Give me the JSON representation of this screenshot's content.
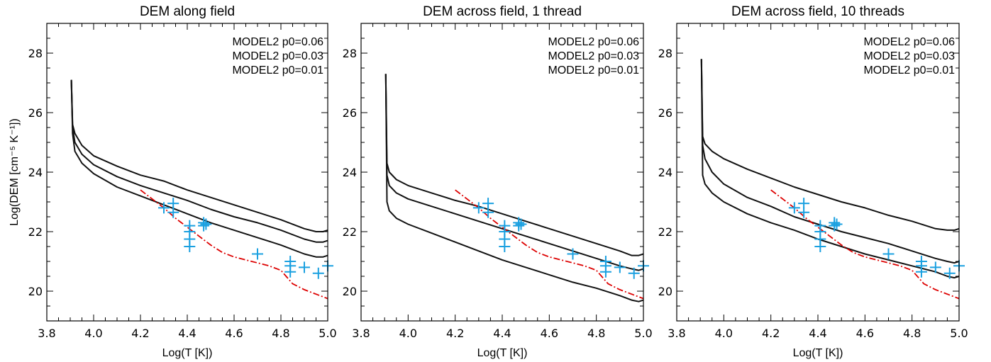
{
  "chart_data": [
    {
      "type": "line",
      "title": "DEM along field",
      "xlabel": "Log(T [K])",
      "ylabel": "Log(DEM [cm⁻⁵ K⁻¹])",
      "xlim": [
        3.8,
        5.0
      ],
      "ylim": [
        19.0,
        29.0
      ],
      "xticks": [
        "3.8",
        "4.0",
        "4.2",
        "4.4",
        "4.6",
        "4.8",
        "5.0"
      ],
      "yticks": [
        "20",
        "22",
        "24",
        "26",
        "28"
      ],
      "legend_position": "top-right",
      "legend": [
        "MODEL2 p0=0.06",
        "MODEL2 p0=0.03",
        "MODEL2 p0=0.01"
      ],
      "series": [
        {
          "x": [
            3.905,
            3.91,
            3.92,
            3.95,
            4.0,
            4.1,
            4.2,
            4.3,
            4.4,
            4.5,
            4.6,
            4.7,
            4.8,
            4.9,
            4.95,
            4.98,
            5.0
          ],
          "y": [
            27.1,
            25.6,
            25.3,
            24.9,
            24.55,
            24.2,
            23.9,
            23.7,
            23.4,
            23.15,
            22.9,
            22.65,
            22.4,
            22.1,
            22.0,
            22.0,
            22.05
          ]
        },
        {
          "x": [
            3.905,
            3.91,
            3.92,
            3.95,
            4.0,
            4.1,
            4.2,
            4.3,
            4.4,
            4.5,
            4.6,
            4.7,
            4.8,
            4.9,
            4.95,
            4.98,
            5.0
          ],
          "y": [
            27.1,
            25.5,
            25.0,
            24.6,
            24.25,
            23.85,
            23.55,
            23.3,
            23.05,
            22.75,
            22.5,
            22.3,
            22.05,
            21.75,
            21.65,
            21.65,
            21.7
          ]
        },
        {
          "x": [
            3.905,
            3.91,
            3.92,
            3.95,
            4.0,
            4.1,
            4.2,
            4.3,
            4.4,
            4.5,
            4.6,
            4.7,
            4.8,
            4.9,
            4.95,
            4.98,
            5.0
          ],
          "y": [
            27.1,
            25.3,
            24.7,
            24.3,
            23.95,
            23.5,
            23.2,
            22.9,
            22.6,
            22.3,
            22.05,
            21.8,
            21.55,
            21.25,
            21.15,
            21.15,
            21.2
          ]
        }
      ],
      "reference_line": {
        "style": "dash-dot",
        "color": "#dd0000",
        "x": [
          4.2,
          4.25,
          4.3,
          4.35,
          4.4,
          4.45,
          4.5,
          4.55,
          4.6,
          4.65,
          4.7,
          4.75,
          4.8,
          4.85,
          4.9,
          4.95,
          5.0
        ],
        "y": [
          23.4,
          23.1,
          22.8,
          22.45,
          22.15,
          21.85,
          21.55,
          21.3,
          21.15,
          21.05,
          20.95,
          20.85,
          20.7,
          20.25,
          20.05,
          19.9,
          19.75
        ]
      },
      "observed_points": {
        "marker": "plus",
        "color": "#1aa0e0",
        "points": [
          [
            4.3,
            22.8
          ],
          [
            4.34,
            22.95
          ],
          [
            4.34,
            22.65
          ],
          [
            4.41,
            22.2
          ],
          [
            4.41,
            22.0
          ],
          [
            4.41,
            21.75
          ],
          [
            4.41,
            21.5
          ],
          [
            4.47,
            22.3
          ],
          [
            4.47,
            22.2
          ],
          [
            4.48,
            22.25
          ],
          [
            4.7,
            21.25
          ],
          [
            4.84,
            21.0
          ],
          [
            4.84,
            20.85
          ],
          [
            4.84,
            20.65
          ],
          [
            4.9,
            20.8
          ],
          [
            4.96,
            20.6
          ],
          [
            5.0,
            20.85
          ]
        ]
      }
    },
    {
      "type": "line",
      "title": "DEM across field, 1 thread",
      "xlabel": "Log(T [K])",
      "ylabel": "",
      "xlim": [
        3.8,
        5.0
      ],
      "ylim": [
        19.0,
        29.0
      ],
      "xticks": [
        "3.8",
        "4.0",
        "4.2",
        "4.4",
        "4.6",
        "4.8",
        "5.0"
      ],
      "yticks": [
        "20",
        "22",
        "24",
        "26",
        "28"
      ],
      "legend_position": "top-right",
      "legend": [
        "MODEL2 p0=0.06",
        "MODEL2 p0=0.03",
        "MODEL2 p0=0.01"
      ],
      "series": [
        {
          "x": [
            3.905,
            3.91,
            3.92,
            3.95,
            4.0,
            4.1,
            4.2,
            4.3,
            4.4,
            4.5,
            4.6,
            4.7,
            4.8,
            4.9,
            4.95,
            4.98,
            5.0
          ],
          "y": [
            27.3,
            24.3,
            24.0,
            23.75,
            23.55,
            23.3,
            23.05,
            22.85,
            22.6,
            22.35,
            22.1,
            21.85,
            21.6,
            21.35,
            21.2,
            21.2,
            21.25
          ]
        },
        {
          "x": [
            3.905,
            3.91,
            3.92,
            3.95,
            4.0,
            4.1,
            4.2,
            4.3,
            4.4,
            4.5,
            4.6,
            4.7,
            4.8,
            4.9,
            4.95,
            4.98,
            5.0
          ],
          "y": [
            27.3,
            23.9,
            23.55,
            23.3,
            23.1,
            22.85,
            22.6,
            22.35,
            22.1,
            21.85,
            21.6,
            21.35,
            21.1,
            20.85,
            20.75,
            20.7,
            20.75
          ]
        },
        {
          "x": [
            3.905,
            3.91,
            3.92,
            3.95,
            4.0,
            4.1,
            4.2,
            4.3,
            4.4,
            4.5,
            4.6,
            4.7,
            4.8,
            4.9,
            4.95,
            4.98,
            5.0
          ],
          "y": [
            27.3,
            23.0,
            22.7,
            22.45,
            22.25,
            21.95,
            21.65,
            21.35,
            21.05,
            20.8,
            20.55,
            20.3,
            20.1,
            19.85,
            19.7,
            19.65,
            19.7
          ]
        }
      ],
      "reference_line": {
        "style": "dash-dot",
        "color": "#dd0000",
        "x": [
          4.2,
          4.25,
          4.3,
          4.35,
          4.4,
          4.45,
          4.5,
          4.55,
          4.6,
          4.65,
          4.7,
          4.75,
          4.8,
          4.85,
          4.9,
          4.95,
          5.0
        ],
        "y": [
          23.4,
          23.1,
          22.8,
          22.45,
          22.15,
          21.85,
          21.55,
          21.3,
          21.15,
          21.05,
          20.95,
          20.85,
          20.7,
          20.25,
          20.05,
          19.9,
          19.75
        ]
      },
      "observed_points": {
        "marker": "plus",
        "color": "#1aa0e0",
        "points": [
          [
            4.3,
            22.8
          ],
          [
            4.34,
            22.95
          ],
          [
            4.34,
            22.65
          ],
          [
            4.41,
            22.2
          ],
          [
            4.41,
            22.0
          ],
          [
            4.41,
            21.75
          ],
          [
            4.41,
            21.5
          ],
          [
            4.47,
            22.3
          ],
          [
            4.47,
            22.2
          ],
          [
            4.48,
            22.25
          ],
          [
            4.7,
            21.25
          ],
          [
            4.84,
            21.0
          ],
          [
            4.84,
            20.85
          ],
          [
            4.84,
            20.65
          ],
          [
            4.9,
            20.8
          ],
          [
            4.96,
            20.6
          ],
          [
            5.0,
            20.85
          ]
        ]
      }
    },
    {
      "type": "line",
      "title": "DEM across field, 10 threads",
      "xlabel": "Log(T [K])",
      "ylabel": "",
      "xlim": [
        3.8,
        5.0
      ],
      "ylim": [
        19.0,
        29.0
      ],
      "xticks": [
        "3.8",
        "4.0",
        "4.2",
        "4.4",
        "4.6",
        "4.8",
        "5.0"
      ],
      "yticks": [
        "20",
        "22",
        "24",
        "26",
        "28"
      ],
      "legend_position": "top-right",
      "legend": [
        "MODEL2 p0=0.06",
        "MODEL2 p0=0.03",
        "MODEL2 p0=0.01"
      ],
      "series": [
        {
          "x": [
            3.905,
            3.91,
            3.92,
            3.95,
            4.0,
            4.1,
            4.2,
            4.3,
            4.4,
            4.5,
            4.6,
            4.7,
            4.8,
            4.9,
            4.95,
            4.98,
            5.0
          ],
          "y": [
            27.8,
            25.2,
            24.95,
            24.7,
            24.45,
            24.1,
            23.8,
            23.5,
            23.25,
            23.0,
            22.8,
            22.55,
            22.35,
            22.1,
            22.05,
            22.05,
            22.1
          ]
        },
        {
          "x": [
            3.905,
            3.91,
            3.92,
            3.95,
            4.0,
            4.1,
            4.2,
            4.3,
            4.4,
            4.5,
            4.6,
            4.7,
            4.8,
            4.9,
            4.95,
            4.98,
            5.0
          ],
          "y": [
            27.8,
            24.9,
            24.45,
            24.0,
            23.6,
            23.15,
            22.85,
            22.5,
            22.25,
            22.0,
            21.8,
            21.6,
            21.35,
            21.1,
            21.0,
            20.95,
            21.0
          ]
        },
        {
          "x": [
            3.905,
            3.91,
            3.92,
            3.95,
            4.0,
            4.1,
            4.2,
            4.3,
            4.4,
            4.5,
            4.6,
            4.7,
            4.8,
            4.9,
            4.95,
            4.98,
            5.0
          ],
          "y": [
            27.8,
            23.9,
            23.6,
            23.3,
            23.0,
            22.6,
            22.3,
            22.05,
            21.75,
            21.5,
            21.25,
            21.05,
            20.85,
            20.65,
            20.5,
            20.45,
            20.5
          ]
        }
      ],
      "reference_line": {
        "style": "dash-dot",
        "color": "#dd0000",
        "x": [
          4.2,
          4.25,
          4.3,
          4.35,
          4.4,
          4.45,
          4.5,
          4.55,
          4.6,
          4.65,
          4.7,
          4.75,
          4.8,
          4.85,
          4.9,
          4.95,
          5.0
        ],
        "y": [
          23.4,
          23.1,
          22.8,
          22.45,
          22.15,
          21.85,
          21.55,
          21.3,
          21.15,
          21.05,
          20.95,
          20.85,
          20.7,
          20.25,
          20.05,
          19.9,
          19.75
        ]
      },
      "observed_points": {
        "marker": "plus",
        "color": "#1aa0e0",
        "points": [
          [
            4.3,
            22.8
          ],
          [
            4.34,
            22.95
          ],
          [
            4.34,
            22.65
          ],
          [
            4.41,
            22.2
          ],
          [
            4.41,
            22.0
          ],
          [
            4.41,
            21.75
          ],
          [
            4.41,
            21.5
          ],
          [
            4.47,
            22.3
          ],
          [
            4.47,
            22.2
          ],
          [
            4.48,
            22.25
          ],
          [
            4.7,
            21.25
          ],
          [
            4.84,
            21.0
          ],
          [
            4.84,
            20.85
          ],
          [
            4.84,
            20.65
          ],
          [
            4.9,
            20.8
          ],
          [
            4.96,
            20.6
          ],
          [
            5.0,
            20.85
          ]
        ]
      }
    }
  ],
  "colors": {
    "model_lines": "#111111",
    "reference": "#dd0000",
    "observed": "#1aa0e0",
    "axes": "#000000"
  }
}
